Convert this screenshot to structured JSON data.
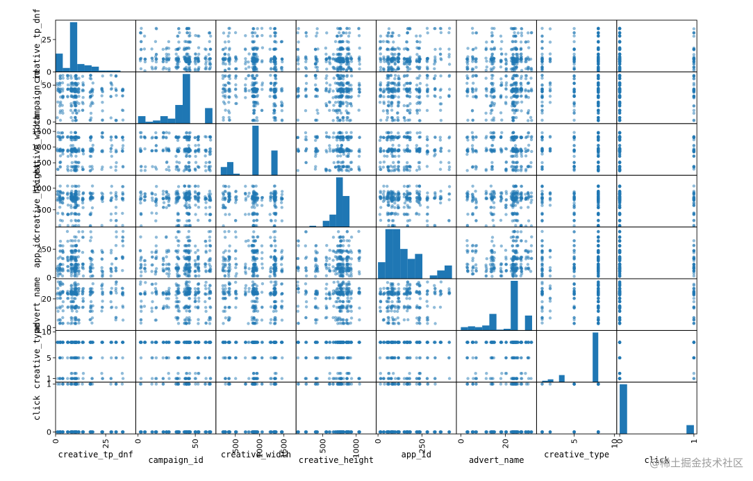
{
  "watermark": "@稀土掘金技术社区",
  "chart_data": {
    "type": "scatter-matrix",
    "variables": [
      "creative_tp_dnf",
      "campaign_id",
      "creative_width",
      "creative_height",
      "app_id",
      "advert_name",
      "creative_type",
      "click"
    ],
    "color": "#1f77b4",
    "point_alpha": 0.5,
    "diagonal": "hist",
    "y_ticks": {
      "creative_tp_dnf": [
        "0",
        "25"
      ],
      "campaign_id": [
        "0",
        "50"
      ],
      "creative_width": [
        "500",
        "1000",
        "1500"
      ],
      "creative_height": [
        "500",
        "1000"
      ],
      "app_id": [
        "0",
        "250"
      ],
      "advert_name": [
        "0",
        "20"
      ],
      "creative_type": [
        "1",
        "5",
        "10"
      ],
      "click": [
        "0",
        "1"
      ]
    },
    "x_ticks": {
      "creative_tp_dnf": [
        "0",
        "25"
      ],
      "campaign_id": [
        "0",
        "50"
      ],
      "creative_width": [
        "500",
        "1000",
        "1500"
      ],
      "creative_height": [
        "500",
        "1000"
      ],
      "app_id": [
        "0",
        "250"
      ],
      "advert_name": [
        "0",
        "20"
      ],
      "creative_type": [
        "5",
        "10"
      ],
      "click": [
        "0",
        "1"
      ]
    },
    "ranges": {
      "creative_tp_dnf": [
        0,
        40
      ],
      "campaign_id": [
        -2,
        68
      ],
      "creative_width": [
        100,
        1750
      ],
      "creative_height": [
        100,
        1300
      ],
      "app_id": [
        -10,
        445
      ],
      "advert_name": [
        -2,
        34
      ],
      "creative_type": [
        0.3,
        10.3
      ],
      "click": [
        -0.04,
        1.04
      ]
    },
    "histograms": {
      "creative_tp_dnf": {
        "bins": 10,
        "range": [
          0,
          36
        ],
        "counts": [
          14,
          3,
          38,
          6,
          5,
          4,
          1,
          1,
          1,
          0
        ]
      },
      "campaign_id": {
        "bins": 10,
        "range": [
          0,
          65
        ],
        "counts": [
          12,
          3,
          5,
          12,
          8,
          30,
          80,
          0,
          0,
          25
        ]
      },
      "creative_width": {
        "bins": 10,
        "range": [
          200,
          1500
        ],
        "counts": [
          5,
          8,
          1,
          0,
          0,
          30,
          0,
          0,
          15,
          0
        ]
      },
      "creative_height": {
        "bins": 10,
        "range": [
          100,
          1100
        ],
        "counts": [
          0,
          0,
          1,
          0,
          5,
          10,
          40,
          25,
          0,
          0
        ]
      },
      "app_id": {
        "bins": 10,
        "range": [
          0,
          420
        ],
        "counts": [
          10,
          30,
          30,
          18,
          12,
          15,
          0,
          2,
          5,
          8
        ]
      },
      "advert_name": {
        "bins": 10,
        "range": [
          0,
          32
        ],
        "counts": [
          4,
          5,
          4,
          6,
          20,
          1,
          2,
          60,
          0,
          18
        ]
      },
      "creative_type": {
        "bins": 10,
        "range": [
          1,
          8
        ],
        "counts": [
          1,
          2,
          0,
          5,
          0,
          0,
          0,
          0,
          0,
          35
        ]
      },
      "click": {
        "bins": 10,
        "range": [
          0,
          1
        ],
        "counts": [
          85,
          0,
          0,
          0,
          0,
          0,
          0,
          0,
          0,
          15
        ]
      }
    }
  }
}
